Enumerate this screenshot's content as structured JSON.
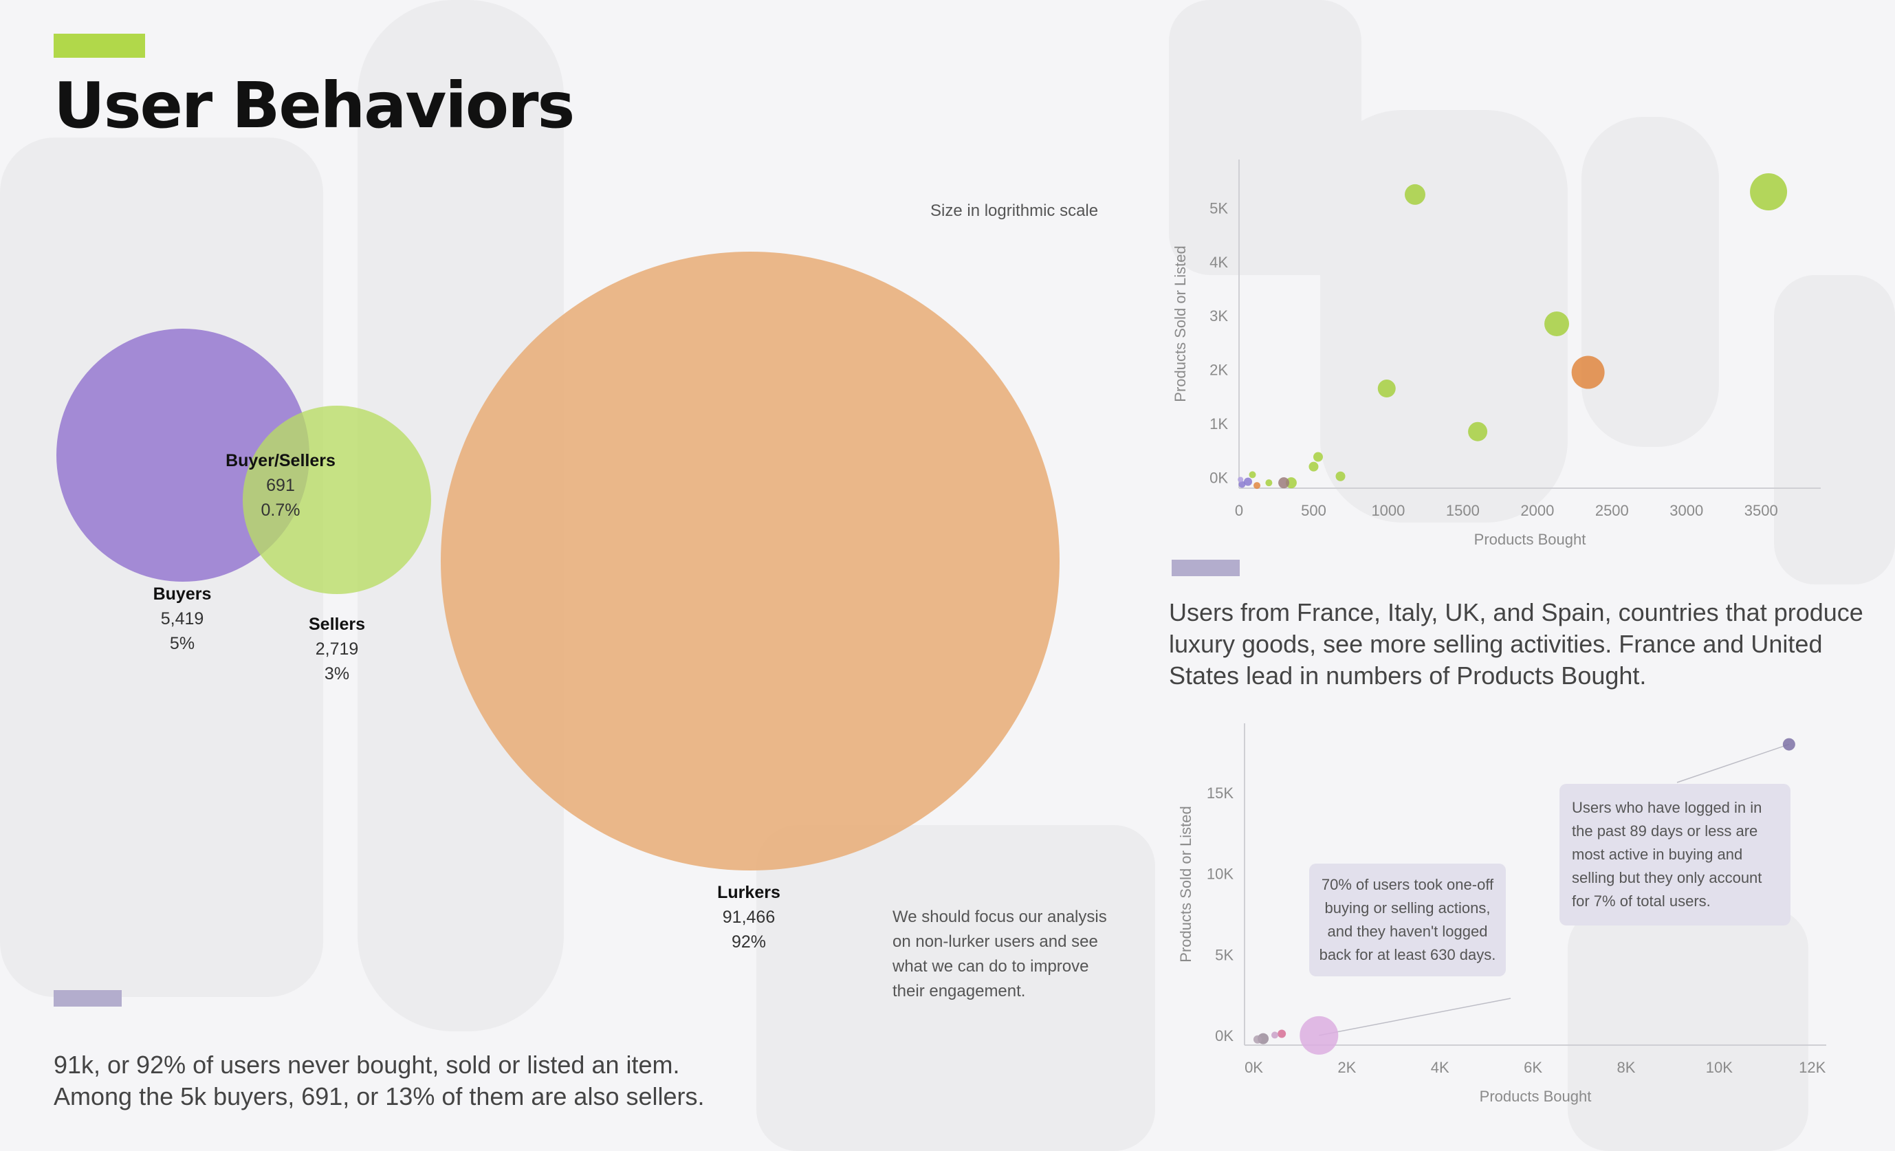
{
  "title": "User Behaviors",
  "colors": {
    "title_accent": "#b1d84a",
    "block_accent": "#b3adcd",
    "buyers": "#9274d0",
    "sellers": "#b9dc64",
    "lurkers": "#e9b07c",
    "buyer_sellers": "#e0873f"
  },
  "venn": {
    "size_note": "Size in logrithmic scale",
    "groups": [
      {
        "name": "Buyers",
        "value": "5,419",
        "percent": "5%"
      },
      {
        "name": "Sellers",
        "value": "2,719",
        "percent": "3%"
      },
      {
        "name": "Buyer/Sellers",
        "value": "691",
        "percent": "0.7%"
      },
      {
        "name": "Lurkers",
        "value": "91,466",
        "percent": "92%"
      }
    ],
    "focus_note": [
      "We should focus our analysis",
      "on non-lurker users and see",
      "what we can do to improve",
      "their engagement."
    ]
  },
  "bottom_caption": [
    "91k, or 92% of users never bought, sold or listed an item.",
    "Among the 5k buyers, 691, or 13% of them are also sellers."
  ],
  "middle_caption": [
    "Users from France, Italy, UK, and Spain, countries that produce",
    "luxury goods, see more selling activities. France and United",
    "States lead in numbers of Products Bought."
  ],
  "chart_data": [
    {
      "type": "scatter",
      "title": "",
      "xlabel": "Products Bought",
      "ylabel": "Products Sold or Listed",
      "xlim": [
        0,
        3900
      ],
      "ylim": [
        -200,
        5900
      ],
      "x_ticks": [
        0,
        500,
        1000,
        1500,
        2000,
        2500,
        3000,
        3500
      ],
      "x_tick_labels": [
        "0",
        "500",
        "1000",
        "1500",
        "2000",
        "2500",
        "3000",
        "3500"
      ],
      "y_ticks": [
        0,
        1000,
        2000,
        3000,
        4000,
        5000
      ],
      "y_tick_labels": [
        "0K",
        "1K",
        "2K",
        "3K",
        "4K",
        "5K"
      ],
      "points": [
        {
          "x": 3550,
          "y": 5300,
          "r": 27,
          "color": "#a7d040"
        },
        {
          "x": 1180,
          "y": 5250,
          "r": 15,
          "color": "#a7d040"
        },
        {
          "x": 2130,
          "y": 2850,
          "r": 18,
          "color": "#a7d040"
        },
        {
          "x": 2340,
          "y": 1950,
          "r": 24,
          "color": "#e0873f"
        },
        {
          "x": 990,
          "y": 1650,
          "r": 13,
          "color": "#a7d040"
        },
        {
          "x": 1600,
          "y": 850,
          "r": 14,
          "color": "#a7d040"
        },
        {
          "x": 530,
          "y": 380,
          "r": 7,
          "color": "#a7d040"
        },
        {
          "x": 500,
          "y": 200,
          "r": 7,
          "color": "#a7d040"
        },
        {
          "x": 680,
          "y": 20,
          "r": 7,
          "color": "#a7d040"
        },
        {
          "x": 350,
          "y": -100,
          "r": 8,
          "color": "#a7d040"
        },
        {
          "x": 300,
          "y": -100,
          "r": 8,
          "color": "#9b7b7b"
        },
        {
          "x": 200,
          "y": -100,
          "r": 5,
          "color": "#a7d040"
        },
        {
          "x": 90,
          "y": 50,
          "r": 5,
          "color": "#a7d040"
        },
        {
          "x": 60,
          "y": -80,
          "r": 6,
          "color": "#8a7ad0"
        },
        {
          "x": 120,
          "y": -150,
          "r": 5,
          "color": "#e0873f"
        },
        {
          "x": 20,
          "y": -130,
          "r": 5,
          "color": "#8a7ad0"
        },
        {
          "x": 10,
          "y": -40,
          "r": 4,
          "color": "#b0a0e0"
        }
      ]
    },
    {
      "type": "scatter",
      "title": "",
      "xlabel": "Products Bought",
      "ylabel": "Products Sold or Listed",
      "xlim": [
        -200,
        12300
      ],
      "ylim": [
        -600,
        19300
      ],
      "x_ticks": [
        0,
        2000,
        4000,
        6000,
        8000,
        10000,
        12000
      ],
      "x_tick_labels": [
        "0K",
        "2K",
        "4K",
        "6K",
        "8K",
        "10K",
        "12K"
      ],
      "y_ticks": [
        0,
        5000,
        10000,
        15000
      ],
      "y_tick_labels": [
        "0K",
        "5K",
        "10K",
        "15K"
      ],
      "points": [
        {
          "x": 11500,
          "y": 18000,
          "r": 9,
          "color": "#7d71a6"
        },
        {
          "x": 1400,
          "y": 0,
          "r": 28,
          "color": "#dcaee0"
        },
        {
          "x": 600,
          "y": 100,
          "r": 6,
          "color": "#d76f95"
        },
        {
          "x": 450,
          "y": 20,
          "r": 5,
          "color": "#c9a0c8"
        },
        {
          "x": 200,
          "y": -200,
          "r": 8,
          "color": "#9b8c9b"
        },
        {
          "x": 80,
          "y": -250,
          "r": 6,
          "color": "#b0a0b0"
        }
      ],
      "annotations": [
        "70% of users took one-off buying or selling actions, and they haven't logged back for at least 630 days.",
        "Users who have logged in in the past 89 days or less are most active in buying and selling but they only account for 7% of total users."
      ]
    }
  ]
}
